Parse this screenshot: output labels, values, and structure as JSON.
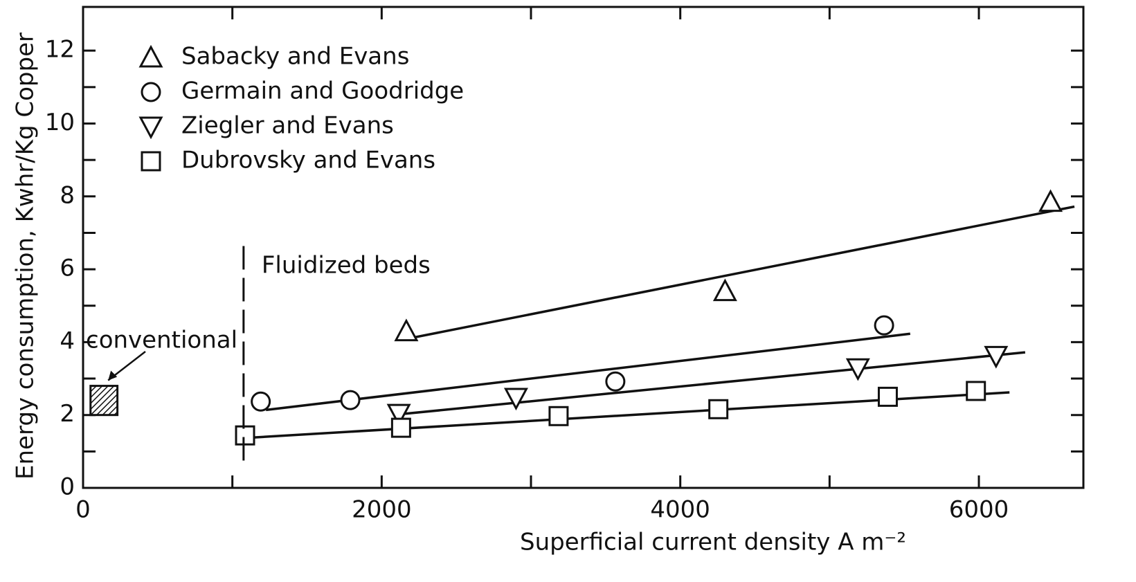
{
  "chart_data": {
    "type": "scatter",
    "x_label": "Superficial current density A m⁻²",
    "y_label": "Energy consumption, Kwhr/Kg Copper",
    "xlim": [
      0,
      6700
    ],
    "ylim": [
      0,
      13.2
    ],
    "xticks": [
      0,
      2000,
      4000,
      6000
    ],
    "yticks": [
      0,
      2,
      4,
      6,
      8,
      10,
      12
    ],
    "legend": "upper left",
    "series": [
      {
        "name": "Sabacky and Evans",
        "marker": "triangle-up",
        "color": "#111111",
        "x": [
          2165,
          4300,
          6480
        ],
        "values": [
          4.3,
          5.4,
          7.85
        ],
        "fit": {
          "x": [
            2155,
            6640
          ],
          "values": [
            4.08,
            7.72
          ]
        }
      },
      {
        "name": "Germain and Goodridge",
        "marker": "circle",
        "color": "#111111",
        "x": [
          1190,
          1790,
          3565,
          5365
        ],
        "values": [
          2.37,
          2.41,
          2.92,
          4.46
        ],
        "fit": {
          "x": [
            1225,
            5540
          ],
          "values": [
            2.14,
            4.23
          ]
        }
      },
      {
        "name": "Ziegler and Evans",
        "marker": "triangle-down",
        "color": "#111111",
        "x": [
          2115,
          2900,
          5190,
          6115
        ],
        "values": [
          2.03,
          2.47,
          3.28,
          3.62
        ],
        "fit": {
          "x": [
            2095,
            6310
          ],
          "values": [
            2.01,
            3.72
          ]
        }
      },
      {
        "name": "Dubrovsky and Evans",
        "marker": "square",
        "color": "#111111",
        "x": [
          1085,
          2130,
          3185,
          4255,
          5390,
          5980
        ],
        "values": [
          1.44,
          1.65,
          1.97,
          2.16,
          2.5,
          2.66
        ],
        "fit": {
          "x": [
            1085,
            6205
          ],
          "values": [
            1.37,
            2.62
          ]
        }
      }
    ],
    "annotations": [
      {
        "text": "Fluidized beds",
        "x": 1075,
        "y": [
          0.75,
          6.65
        ]
      },
      {
        "text": "conventional",
        "x": [
          50,
          230
        ],
        "y": [
          2.0,
          2.8
        ]
      }
    ]
  }
}
